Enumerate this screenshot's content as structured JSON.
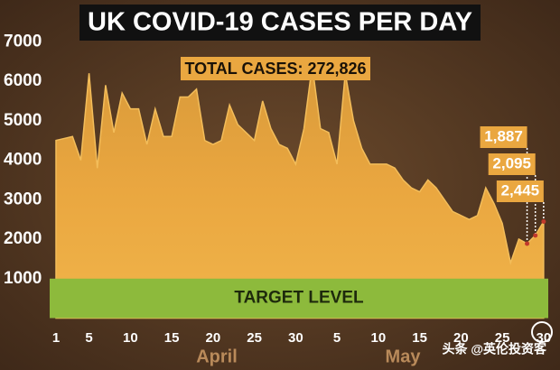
{
  "chart_data": {
    "type": "area",
    "title": "UK COVID-19 CASES PER DAY",
    "annotation": "TOTAL CASES: 272,826",
    "categories": [
      "1",
      null,
      null,
      null,
      "5",
      null,
      null,
      null,
      null,
      "10",
      null,
      null,
      null,
      null,
      "15",
      null,
      null,
      null,
      null,
      "20",
      null,
      null,
      null,
      null,
      "25",
      null,
      null,
      null,
      null,
      "30",
      null,
      null,
      null,
      null,
      "5",
      null,
      null,
      null,
      null,
      "10",
      null,
      null,
      null,
      null,
      "15",
      null,
      null,
      null,
      null,
      "20",
      null,
      null,
      null,
      null,
      "25",
      null,
      null,
      null,
      null,
      "30"
    ],
    "month_labels": [
      "April",
      "May"
    ],
    "values": [
      4500,
      4550,
      4600,
      4000,
      6200,
      3800,
      5900,
      4700,
      5700,
      5300,
      5300,
      4400,
      5300,
      4600,
      4600,
      5600,
      5600,
      5800,
      4500,
      4400,
      4500,
      5400,
      4900,
      4700,
      4500,
      5500,
      4800,
      4400,
      4300,
      3900,
      4800,
      6400,
      4800,
      4700,
      3900,
      6200,
      5000,
      4300,
      3900,
      3900,
      3900,
      3800,
      3500,
      3300,
      3200,
      3500,
      3300,
      3000,
      2700,
      2600,
      2500,
      2600,
      3300,
      2900,
      2400,
      1400,
      2000,
      1887,
      2095,
      2445
    ],
    "value_labels": [
      null,
      null,
      null,
      null,
      null,
      null,
      null,
      null,
      null,
      null,
      null,
      null,
      null,
      null,
      null,
      null,
      null,
      null,
      null,
      null,
      null,
      null,
      null,
      null,
      null,
      null,
      null,
      null,
      null,
      null,
      null,
      null,
      null,
      null,
      null,
      null,
      null,
      null,
      null,
      null,
      null,
      null,
      null,
      null,
      null,
      null,
      null,
      null,
      null,
      null,
      null,
      null,
      null,
      null,
      null,
      null,
      null,
      "1,887",
      "2,095",
      "2,445"
    ],
    "color": "#e9a43e",
    "target_level": 1000,
    "target_label": "TARGET LEVEL",
    "target_color": "#8dba3c",
    "ylim": [
      0,
      7000
    ],
    "yticks": [
      1000,
      2000,
      3000,
      4000,
      5000,
      6000,
      7000
    ],
    "grid": false,
    "watermark": "头条 @英伦投资客"
  }
}
